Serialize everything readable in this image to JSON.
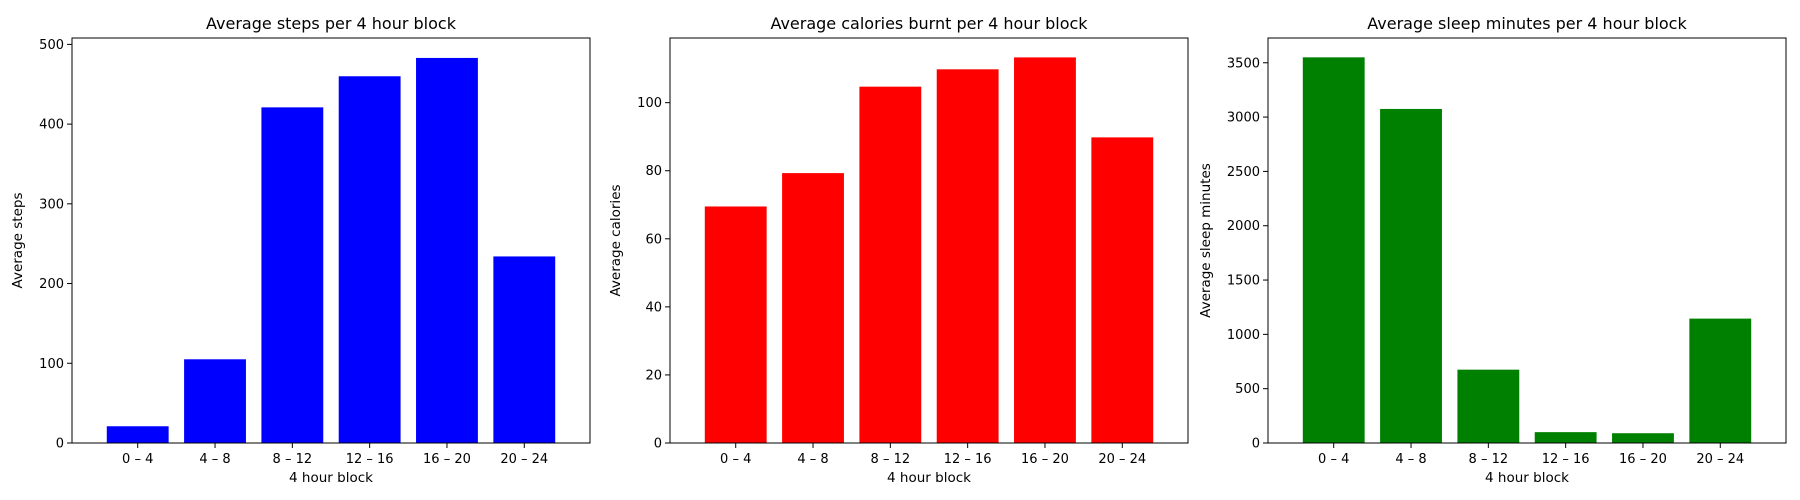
{
  "chart_data": [
    {
      "type": "bar",
      "title": "Average steps per 4 hour block",
      "xlabel": "4 hour block",
      "ylabel": "Average steps",
      "categories": [
        "0 – 4",
        "4 – 8",
        "8 – 12",
        "12 – 16",
        "16 – 20",
        "20 – 24"
      ],
      "values": [
        21,
        105,
        421,
        460,
        483,
        234
      ],
      "ylim": [
        0,
        508
      ],
      "yticks": [
        0,
        100,
        200,
        300,
        400,
        500
      ],
      "color": "#0000ff",
      "grid": false
    },
    {
      "type": "bar",
      "title": "Average calories burnt per 4 hour block",
      "xlabel": "4 hour block",
      "ylabel": "Average calories",
      "categories": [
        "0 – 4",
        "4 – 8",
        "8 – 12",
        "12 – 16",
        "16 – 20",
        "20 – 24"
      ],
      "values": [
        69.5,
        79.3,
        104.7,
        109.8,
        113.3,
        89.8
      ],
      "ylim": [
        0,
        119
      ],
      "yticks": [
        0,
        20,
        40,
        60,
        80,
        100
      ],
      "color": "#ff0000",
      "grid": false
    },
    {
      "type": "bar",
      "title": "Average sleep minutes per 4 hour block",
      "xlabel": "4 hour block",
      "ylabel": "Average sleep minutes",
      "categories": [
        "0 – 4",
        "4 – 8",
        "8 – 12",
        "12 – 16",
        "16 – 20",
        "20 – 24"
      ],
      "values": [
        3550,
        3075,
        675,
        100,
        90,
        1145
      ],
      "ylim": [
        0,
        3728
      ],
      "yticks": [
        0,
        500,
        1000,
        1500,
        2000,
        2500,
        3000,
        3500
      ],
      "color": "#008000",
      "grid": false
    }
  ]
}
